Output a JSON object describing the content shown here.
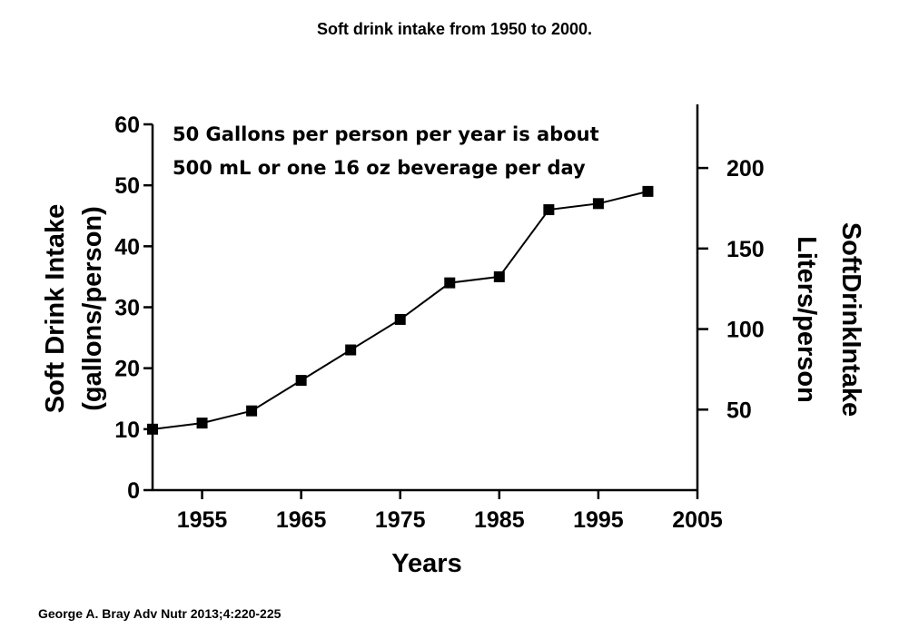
{
  "title": "Soft drink intake from 1950 to 2000.",
  "source": "George A. Bray Adv Nutr 2013;4:220-225",
  "chart_data": {
    "type": "line",
    "title": "Soft drink intake from 1950 to 2000.",
    "xlabel": "Years",
    "ylabel_left": [
      "Soft Drink Intake",
      "(gallons/person)"
    ],
    "ylabel_right": [
      "SoftDrinkIntake",
      "Liters/person"
    ],
    "xlim": [
      1950,
      2005
    ],
    "ylim_left": [
      0,
      60
    ],
    "x_ticks": [
      1955,
      1965,
      1975,
      1985,
      1995,
      2005
    ],
    "y_ticks_left": [
      0,
      10,
      20,
      30,
      40,
      50,
      60
    ],
    "y_ticks_right": [
      50,
      100,
      150,
      200
    ],
    "grid": false,
    "annotation": [
      "50 Gallons per person per year is about",
      "500 mL or  one 16 oz beverage per day"
    ],
    "series": [
      {
        "x": [
          1950,
          1955,
          1960,
          1965,
          1970,
          1975,
          1980,
          1985,
          1990,
          1995,
          2000
        ],
        "y": [
          10,
          11,
          13,
          18,
          23,
          28,
          34,
          35,
          46,
          47,
          49
        ]
      }
    ]
  }
}
